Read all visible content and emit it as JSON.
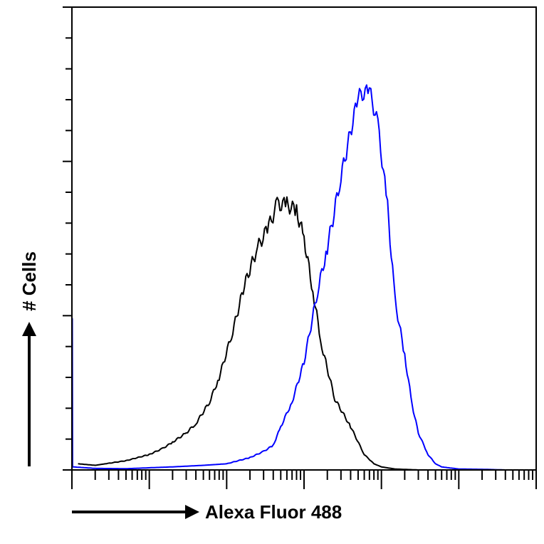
{
  "chart_data": {
    "type": "line",
    "title": "",
    "xlabel": "Alexa Fluor 488",
    "ylabel": "# Cells",
    "x_scale": "log",
    "xlim": [
      1,
      1000000
    ],
    "ylim": [
      0,
      150
    ],
    "grid": false,
    "legend": "none",
    "series": [
      {
        "color": "#000000",
        "x": [
          1.2,
          2,
          5,
          10,
          15,
          20,
          30,
          40,
          60,
          80,
          120,
          170,
          250,
          350,
          450,
          600,
          800,
          1000,
          1300,
          1700,
          2500,
          4000,
          6000,
          8000,
          10000,
          15000,
          30000
        ],
        "y": [
          2,
          1.5,
          3,
          5,
          7,
          9,
          12,
          15,
          22,
          30,
          45,
          60,
          72,
          79,
          86,
          86,
          84,
          75,
          58,
          40,
          23,
          14,
          5,
          2,
          1,
          0.3,
          0
        ]
      },
      {
        "color": "#0000ff",
        "x": [
          1,
          1.01,
          1.02,
          2,
          5,
          20,
          50,
          100,
          200,
          300,
          400,
          500,
          700,
          1000,
          1500,
          2000,
          3000,
          5000,
          7000,
          9000,
          12000,
          15000,
          20000,
          25000,
          30000,
          40000,
          50000,
          60000,
          80000,
          100000,
          200000,
          400000
        ],
        "y": [
          0,
          50,
          1,
          0.5,
          0.4,
          1,
          1.5,
          2,
          4,
          6,
          8,
          14,
          22,
          35,
          58,
          72,
          95,
          121,
          123,
          112,
          85,
          55,
          37,
          21,
          12,
          5,
          2,
          1,
          0.6,
          0.3,
          0.2,
          0
        ]
      }
    ]
  }
}
